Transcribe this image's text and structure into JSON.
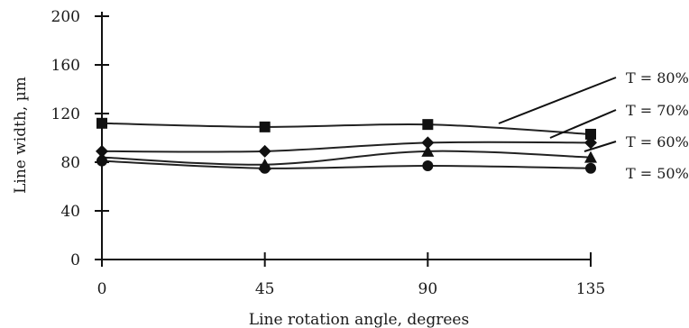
{
  "chart_data": {
    "type": "line",
    "xlabel": "Line rotation angle, degrees",
    "ylabel": "Line width, µm",
    "x": [
      0,
      45,
      90,
      135
    ],
    "xticks": [
      "0",
      "45",
      "90",
      "135"
    ],
    "yticks": [
      "0",
      "40",
      "80",
      "120",
      "160",
      "200"
    ],
    "xlim": [
      0,
      135
    ],
    "ylim": [
      0,
      200
    ],
    "grid": false,
    "legend_position": "right",
    "series": [
      {
        "name": "T = 80%",
        "marker": "square",
        "values": [
          112,
          109,
          111,
          103
        ]
      },
      {
        "name": "T = 70%",
        "marker": "diamond",
        "values": [
          89,
          89,
          96,
          96
        ]
      },
      {
        "name": "T = 60%",
        "marker": "triangle",
        "values": [
          84,
          78,
          89,
          84
        ]
      },
      {
        "name": "T = 50%",
        "marker": "circle",
        "values": [
          81,
          75,
          77,
          75
        ]
      }
    ]
  }
}
